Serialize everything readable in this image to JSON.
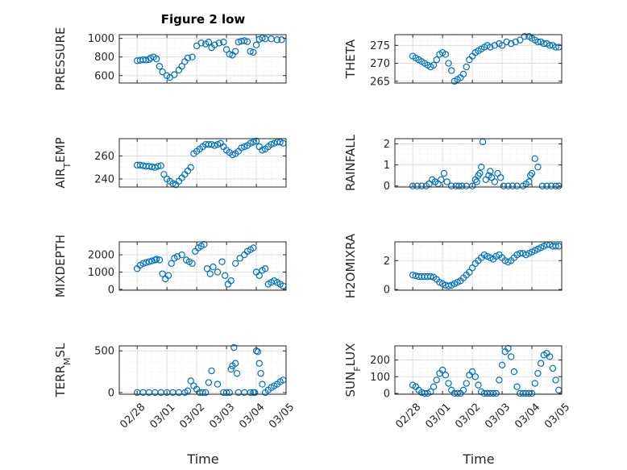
{
  "figure": {
    "title": "Figure 2 low",
    "xlabel": "Time"
  },
  "colors": {
    "marker": "#0072bd",
    "axis": "#262626",
    "grid": "#d9d9d9"
  },
  "chart_data": [
    {
      "type": "scatter",
      "ylabel": "PRESSURE",
      "ylim": [
        520,
        1040
      ],
      "yticks": [
        600,
        800,
        1000
      ],
      "xlim": [
        -0.6,
        5.0
      ],
      "xticks": [
        "02/28",
        "03/01",
        "03/02",
        "03/03",
        "03/04",
        "03/05"
      ],
      "grid": "on",
      "x": [
        0.0,
        0.1,
        0.2,
        0.3,
        0.4,
        0.45,
        0.55,
        0.65,
        0.75,
        0.85,
        1.0,
        1.1,
        1.25,
        1.4,
        1.5,
        1.6,
        1.7,
        1.85,
        2.0,
        2.15,
        2.3,
        2.4,
        2.5,
        2.6,
        2.75,
        2.9,
        3.0,
        3.1,
        3.2,
        3.3,
        3.4,
        3.5,
        3.6,
        3.7,
        3.8,
        3.9,
        4.0,
        4.1,
        4.2,
        4.3,
        4.5,
        4.7,
        4.85
      ],
      "y": [
        760,
        765,
        770,
        768,
        772,
        790,
        800,
        780,
        700,
        640,
        600,
        580,
        610,
        660,
        700,
        750,
        790,
        800,
        920,
        950,
        940,
        960,
        900,
        930,
        950,
        960,
        880,
        830,
        820,
        860,
        960,
        970,
        975,
        965,
        860,
        850,
        930,
        990,
        1005,
        995,
        995,
        985,
        985
      ]
    },
    {
      "type": "scatter",
      "ylabel": "THETA",
      "ylim": [
        264.5,
        278
      ],
      "yticks": [
        265,
        270,
        275
      ],
      "xlim": [
        -0.6,
        5.0
      ],
      "xticks": [
        "02/28",
        "03/01",
        "03/02",
        "03/03",
        "03/04",
        "03/05"
      ],
      "grid": "on",
      "x": [
        0.0,
        0.1,
        0.2,
        0.3,
        0.4,
        0.5,
        0.6,
        0.7,
        0.8,
        0.9,
        1.0,
        1.1,
        1.2,
        1.3,
        1.4,
        1.5,
        1.6,
        1.7,
        1.8,
        1.9,
        2.0,
        2.1,
        2.2,
        2.3,
        2.4,
        2.5,
        2.6,
        2.75,
        2.9,
        3.0,
        3.15,
        3.3,
        3.45,
        3.6,
        3.75,
        3.9,
        4.0,
        4.1,
        4.2,
        4.3,
        4.4,
        4.5,
        4.6,
        4.7,
        4.8,
        4.9
      ],
      "y": [
        272,
        271.5,
        271,
        270.5,
        270,
        269.5,
        269,
        269.5,
        271,
        272.5,
        273,
        272.5,
        270,
        268,
        265,
        265.5,
        266,
        267,
        269,
        271,
        272,
        273,
        273.5,
        274,
        274.5,
        275,
        274.5,
        275,
        275.5,
        275,
        276,
        275.5,
        276,
        276.5,
        277.5,
        277.5,
        277,
        276.5,
        276,
        276,
        275.5,
        275.5,
        275,
        275,
        274.5,
        274.5
      ]
    },
    {
      "type": "scatter",
      "ylabel": "AIR_TEMP",
      "ylim": [
        233,
        275
      ],
      "yticks": [
        240,
        260
      ],
      "xlim": [
        -0.6,
        5.0
      ],
      "xticks": [
        "02/28",
        "03/01",
        "03/02",
        "03/03",
        "03/04",
        "03/05"
      ],
      "grid": "on",
      "x": [
        0.0,
        0.1,
        0.2,
        0.3,
        0.4,
        0.5,
        0.6,
        0.7,
        0.8,
        0.9,
        1.0,
        1.1,
        1.2,
        1.3,
        1.4,
        1.5,
        1.6,
        1.7,
        1.8,
        1.9,
        2.0,
        2.1,
        2.2,
        2.3,
        2.4,
        2.5,
        2.6,
        2.7,
        2.8,
        2.9,
        3.0,
        3.1,
        3.2,
        3.3,
        3.4,
        3.5,
        3.6,
        3.7,
        3.8,
        3.9,
        4.0,
        4.1,
        4.2,
        4.3,
        4.4,
        4.5,
        4.6,
        4.7,
        4.8,
        4.9
      ],
      "y": [
        252,
        252,
        251.5,
        251,
        251,
        250.5,
        250,
        251,
        251.5,
        244,
        240,
        238,
        236,
        235,
        238,
        241,
        244,
        247,
        250,
        262,
        264,
        266,
        268,
        270,
        270,
        270,
        269,
        270,
        271,
        268,
        265,
        263,
        261,
        262,
        264,
        267,
        268,
        269,
        271,
        272,
        273,
        268,
        265,
        266,
        268,
        270,
        271,
        272,
        272,
        271
      ]
    },
    {
      "type": "scatter",
      "ylabel": "RAINFALL",
      "ylim": [
        -0.05,
        2.25
      ],
      "yticks": [
        0,
        1,
        2
      ],
      "xlim": [
        -0.6,
        5.0
      ],
      "xticks": [
        "02/28",
        "03/01",
        "03/02",
        "03/03",
        "03/04",
        "03/05"
      ],
      "grid": "on",
      "x": [
        0.0,
        0.15,
        0.3,
        0.45,
        0.55,
        0.65,
        0.75,
        0.85,
        0.95,
        1.05,
        1.15,
        1.3,
        1.45,
        1.55,
        1.65,
        1.8,
        2.0,
        2.1,
        2.15,
        2.2,
        2.25,
        2.3,
        2.35,
        2.45,
        2.55,
        2.6,
        2.65,
        2.75,
        2.85,
        2.95,
        3.05,
        3.2,
        3.35,
        3.5,
        3.7,
        3.8,
        3.9,
        3.95,
        4.0,
        4.1,
        4.2,
        4.35,
        4.5,
        4.65,
        4.8,
        4.9
      ],
      "y": [
        0,
        0,
        0,
        0,
        0.1,
        0.3,
        0.2,
        0.1,
        0.3,
        0.6,
        0.2,
        0,
        0,
        0,
        0,
        0,
        0,
        0.3,
        0.2,
        0.5,
        0.6,
        0.9,
        2.1,
        0.3,
        0.5,
        0.7,
        0.4,
        0.2,
        0.6,
        0.4,
        0,
        0,
        0,
        0,
        0,
        0.1,
        0.2,
        0.5,
        0.6,
        1.3,
        0.9,
        0,
        0,
        0,
        0,
        0
      ]
    },
    {
      "type": "scatter",
      "ylabel": "MIXDEPTH",
      "ylim": [
        -50,
        2750
      ],
      "yticks": [
        0,
        1000,
        2000
      ],
      "xlim": [
        -0.6,
        5.0
      ],
      "xticks": [
        "02/28",
        "03/01",
        "03/02",
        "03/03",
        "03/04",
        "03/05"
      ],
      "grid": "on",
      "x": [
        0.0,
        0.1,
        0.2,
        0.3,
        0.4,
        0.5,
        0.6,
        0.65,
        0.75,
        0.85,
        0.95,
        1.05,
        1.15,
        1.25,
        1.35,
        1.5,
        1.65,
        1.75,
        1.85,
        1.95,
        2.05,
        2.15,
        2.25,
        2.35,
        2.45,
        2.55,
        2.7,
        2.85,
        2.95,
        3.05,
        3.15,
        3.3,
        3.45,
        3.6,
        3.7,
        3.8,
        3.9,
        4.0,
        4.1,
        4.2,
        4.3,
        4.4,
        4.5,
        4.6,
        4.7,
        4.8,
        4.9
      ],
      "y": [
        1200,
        1400,
        1500,
        1550,
        1600,
        1650,
        1700,
        1750,
        1700,
        900,
        600,
        800,
        1500,
        1800,
        1900,
        2000,
        1700,
        1600,
        1500,
        2200,
        2400,
        2500,
        2600,
        1200,
        900,
        1300,
        1000,
        1600,
        800,
        300,
        500,
        1500,
        1800,
        2000,
        2200,
        2300,
        2400,
        1000,
        800,
        1100,
        1200,
        300,
        400,
        500,
        400,
        300,
        200
      ]
    },
    {
      "type": "scatter",
      "ylabel": "H2OMIXRA",
      "ylim": [
        -0.05,
        3.3
      ],
      "yticks": [
        0,
        2
      ],
      "xlim": [
        -0.6,
        5.0
      ],
      "xticks": [
        "02/28",
        "03/01",
        "03/02",
        "03/03",
        "03/04",
        "03/05"
      ],
      "grid": "on",
      "x": [
        0.0,
        0.1,
        0.2,
        0.3,
        0.4,
        0.5,
        0.6,
        0.7,
        0.8,
        0.9,
        1.0,
        1.1,
        1.2,
        1.3,
        1.4,
        1.5,
        1.6,
        1.7,
        1.8,
        1.9,
        2.0,
        2.1,
        2.2,
        2.3,
        2.4,
        2.5,
        2.6,
        2.7,
        2.8,
        2.9,
        3.0,
        3.1,
        3.2,
        3.3,
        3.4,
        3.5,
        3.6,
        3.7,
        3.8,
        3.9,
        4.0,
        4.1,
        4.2,
        4.3,
        4.4,
        4.5,
        4.6,
        4.7,
        4.8,
        4.9
      ],
      "y": [
        1.0,
        0.95,
        0.9,
        0.9,
        0.9,
        0.9,
        0.9,
        0.85,
        0.7,
        0.5,
        0.4,
        0.3,
        0.25,
        0.3,
        0.4,
        0.5,
        0.6,
        0.8,
        1.0,
        1.2,
        1.5,
        1.8,
        2.0,
        2.2,
        2.4,
        2.3,
        2.2,
        2.1,
        2.3,
        2.4,
        2.2,
        2.0,
        1.9,
        2.0,
        2.2,
        2.4,
        2.5,
        2.5,
        2.4,
        2.5,
        2.6,
        2.7,
        2.8,
        2.9,
        3.0,
        3.1,
        3.1,
        3.0,
        3.0,
        3.0
      ]
    },
    {
      "type": "scatter",
      "ylabel": "TERR_MSL",
      "ylim": [
        -20,
        560
      ],
      "yticks": [
        0,
        500
      ],
      "xlim": [
        -0.6,
        5.0
      ],
      "xticks": [
        "02/28",
        "03/01",
        "03/02",
        "03/03",
        "03/04",
        "03/05"
      ],
      "grid": "on",
      "x": [
        0.0,
        0.2,
        0.4,
        0.6,
        0.8,
        1.0,
        1.2,
        1.4,
        1.6,
        1.7,
        1.8,
        1.9,
        2.0,
        2.1,
        2.2,
        2.3,
        2.4,
        2.5,
        2.7,
        2.9,
        3.0,
        3.1,
        3.15,
        3.2,
        3.25,
        3.3,
        3.35,
        3.4,
        3.6,
        3.8,
        3.9,
        3.95,
        4.0,
        4.05,
        4.1,
        4.15,
        4.2,
        4.3,
        4.4,
        4.5,
        4.6,
        4.7,
        4.8,
        4.9
      ],
      "y": [
        0,
        0,
        0,
        0,
        0,
        0,
        0,
        0,
        0,
        20,
        140,
        80,
        40,
        0,
        0,
        0,
        120,
        260,
        100,
        0,
        0,
        0,
        280,
        320,
        540,
        350,
        230,
        0,
        0,
        0,
        0,
        0,
        500,
        490,
        350,
        230,
        100,
        0,
        30,
        60,
        80,
        100,
        130,
        150
      ]
    },
    {
      "type": "scatter",
      "ylabel": "SUN_FLUX",
      "ylim": [
        -5,
        285
      ],
      "yticks": [
        0,
        100,
        200
      ],
      "xlim": [
        -0.6,
        5.0
      ],
      "xticks": [
        "02/28",
        "03/01",
        "03/02",
        "03/03",
        "03/04",
        "03/05"
      ],
      "grid": "on",
      "x": [
        0.0,
        0.1,
        0.2,
        0.3,
        0.4,
        0.5,
        0.6,
        0.7,
        0.8,
        0.9,
        1.0,
        1.1,
        1.2,
        1.3,
        1.4,
        1.5,
        1.6,
        1.7,
        1.8,
        1.9,
        2.0,
        2.1,
        2.2,
        2.3,
        2.4,
        2.5,
        2.6,
        2.7,
        2.8,
        2.9,
        3.0,
        3.1,
        3.2,
        3.3,
        3.4,
        3.5,
        3.6,
        3.7,
        3.8,
        3.9,
        4.0,
        4.1,
        4.2,
        4.3,
        4.4,
        4.5,
        4.6,
        4.7,
        4.8,
        4.9
      ],
      "y": [
        50,
        40,
        20,
        5,
        0,
        0,
        10,
        40,
        80,
        120,
        140,
        110,
        60,
        20,
        0,
        0,
        0,
        20,
        60,
        110,
        130,
        100,
        50,
        10,
        0,
        0,
        0,
        0,
        0,
        80,
        170,
        250,
        270,
        220,
        130,
        40,
        0,
        0,
        0,
        0,
        0,
        60,
        120,
        180,
        230,
        240,
        220,
        150,
        80,
        20
      ]
    }
  ]
}
